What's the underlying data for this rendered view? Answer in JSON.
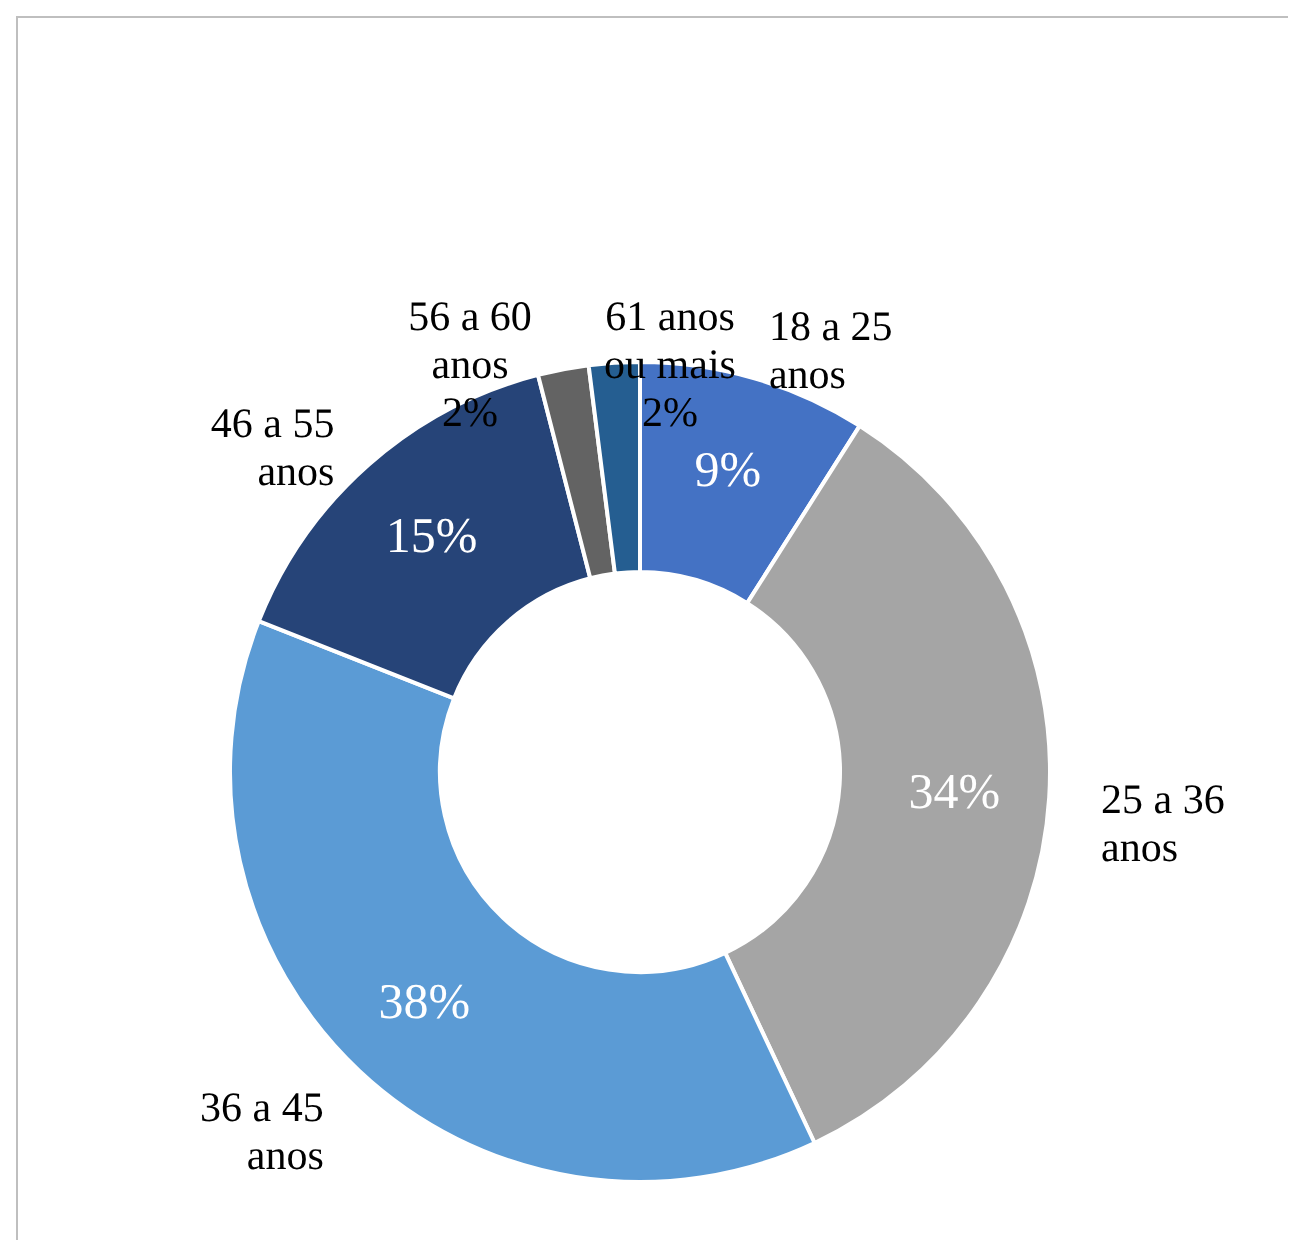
{
  "chart_data": {
    "type": "donut",
    "categories": [
      "18 a 25 anos",
      "25 a 36 anos",
      "36 a 45 anos",
      "46 a 55 anos",
      "56 a 60 anos",
      "61 anos ou mais"
    ],
    "values": [
      9,
      34,
      38,
      15,
      2,
      2
    ],
    "value_labels": [
      "9%",
      "34%",
      "38%",
      "15%",
      "2%",
      "2%"
    ],
    "colors": [
      "#4472c4",
      "#a5a5a5",
      "#5b9bd5",
      "#264478",
      "#636363",
      "#255e91"
    ]
  }
}
